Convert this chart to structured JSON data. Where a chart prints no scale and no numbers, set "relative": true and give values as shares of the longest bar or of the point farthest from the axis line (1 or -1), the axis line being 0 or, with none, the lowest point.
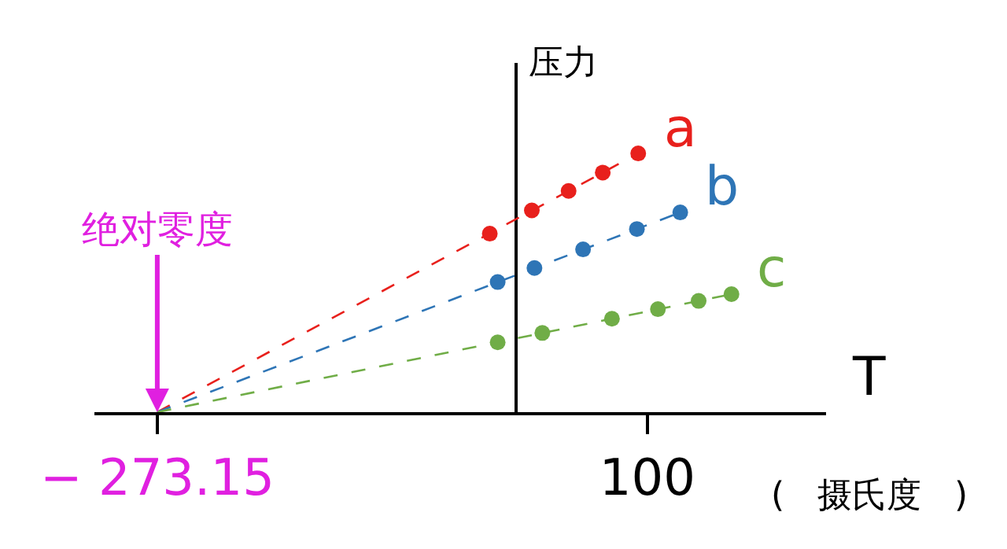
{
  "chart_data": {
    "type": "line",
    "relative": true,
    "xlabel": "T",
    "ylabel": "压力",
    "xlim": [
      -321,
      236
    ],
    "xticks": [
      {
        "value": -273.15,
        "label": "− 273.15"
      },
      100
    ],
    "legend": false,
    "tick_labels": "x",
    "annotations": [
      {
        "text": "绝对零度",
        "x": -273.15,
        "y": 0
      },
      "(   摄氏度   )"
    ],
    "series": [
      {
        "name": "a",
        "color": "#e8201c",
        "line_style": "dashed",
        "marker": "none",
        "x": [
          -273.15,
          93
        ],
        "values": [
          0,
          1.0
        ]
      },
      {
        "name": "b",
        "color": "#2e75b6",
        "line_style": "dashed",
        "marker": "none",
        "x": [
          -273.15,
          125
        ],
        "values": [
          0,
          0.772
        ]
      },
      {
        "name": "c",
        "color": "#70ad47",
        "line_style": "dashed",
        "marker": "none",
        "x": [
          -273.15,
          164
        ],
        "values": [
          0,
          0.456
        ]
      },
      {
        "color": "#e8201c",
        "type": "scatter",
        "marker": "circle",
        "x": [
          -20,
          12,
          40,
          66,
          93
        ],
        "values": [
          0.69,
          0.78,
          0.855,
          0.926,
          1.0
        ]
      },
      {
        "color": "#2e75b6",
        "type": "scatter",
        "marker": "circle",
        "x": [
          -14,
          14,
          51,
          92,
          125
        ],
        "values": [
          0.503,
          0.557,
          0.629,
          0.708,
          0.772
        ]
      },
      {
        "color": "#70ad47",
        "type": "scatter",
        "marker": "circle",
        "x": [
          -14,
          20,
          73,
          108,
          139,
          164
        ],
        "values": [
          0.27,
          0.306,
          0.361,
          0.398,
          0.43,
          0.456
        ]
      }
    ]
  }
}
